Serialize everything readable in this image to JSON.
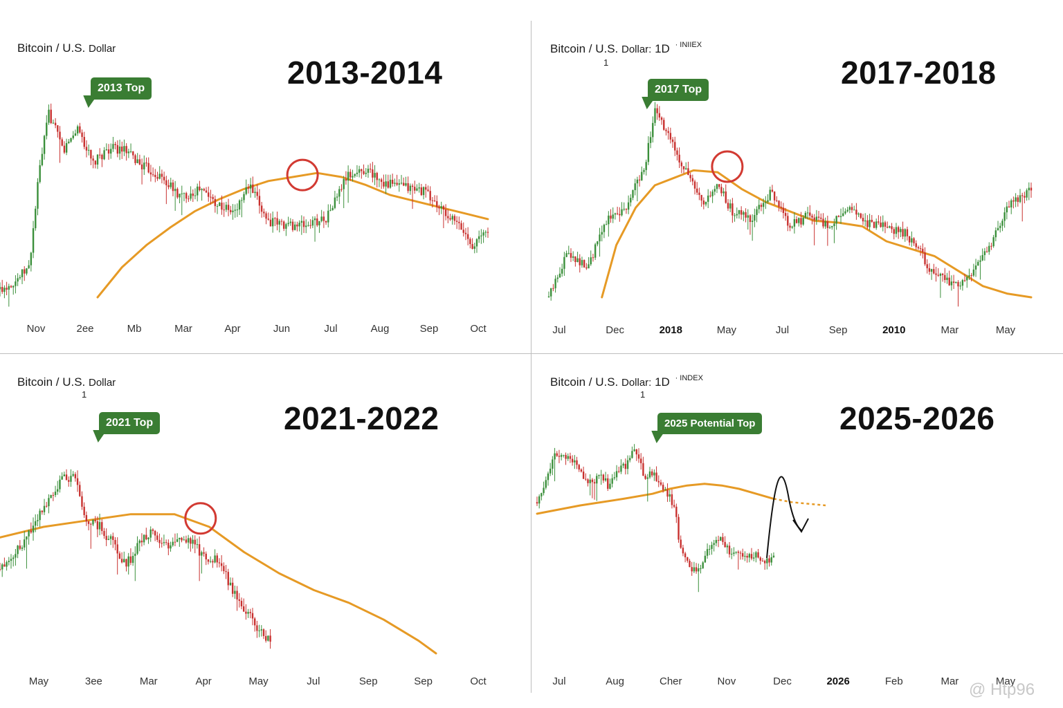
{
  "watermark": "@ Htp96",
  "chart_data": [
    {
      "type": "line",
      "subtitle": {
        "main": "Bitcoin / U.S.",
        "small": "Dollar",
        "suffix": "",
        "sup": "",
        "digit": ""
      },
      "title": "2013-2014",
      "annotation": "2013 Top",
      "ticks": [
        "Nov",
        "2ee",
        "Mb",
        "Mar",
        "Apr",
        "Jun",
        "Jul",
        "Aug",
        "Sep",
        "Oct"
      ],
      "bold_ticks": [],
      "ylim": [
        0,
        100
      ],
      "series": [
        {
          "name": "Price",
          "x": [
            0,
            3,
            6,
            8,
            10,
            13,
            16,
            19,
            22,
            25,
            29,
            33,
            37,
            41,
            45,
            48,
            51,
            55,
            59,
            63,
            67,
            71,
            75,
            79,
            83,
            87,
            91,
            94,
            97,
            100
          ],
          "values": [
            4,
            8,
            15,
            62,
            92,
            73,
            85,
            66,
            74,
            74,
            66,
            60,
            50,
            54,
            46,
            42,
            56,
            38,
            36,
            36,
            40,
            60,
            64,
            57,
            55,
            53,
            42,
            36,
            26,
            34
          ]
        },
        {
          "name": "Moving average",
          "x": [
            20,
            25,
            30,
            35,
            40,
            45,
            50,
            55,
            60,
            65,
            70,
            75,
            80,
            85,
            90,
            95,
            100
          ],
          "values": [
            0,
            15,
            26,
            35,
            43,
            49,
            54,
            58,
            60,
            62,
            60,
            56,
            51,
            48,
            45,
            42,
            39
          ]
        }
      ],
      "circle": {
        "x": 62,
        "y": 61
      },
      "curve_arrow": null,
      "projection": null
    },
    {
      "type": "line",
      "subtitle": {
        "main": "Bitcoin / U.S.",
        "small": "Dollar:",
        "suffix": "1D",
        "sup": "· INIIEX",
        "digit": "1"
      },
      "title": "2017-2018",
      "annotation": "2017 Top",
      "ticks": [
        "Jul",
        "Dec",
        "2018",
        "May",
        "Jul",
        "Sep",
        "2010",
        "Mar",
        "May"
      ],
      "bold_ticks": [
        "2018",
        "2010"
      ],
      "ylim": [
        0,
        100
      ],
      "series": [
        {
          "name": "Price",
          "x": [
            0,
            4,
            8,
            12,
            16,
            20,
            22,
            25,
            28,
            32,
            35,
            38,
            42,
            46,
            50,
            54,
            58,
            62,
            66,
            70,
            74,
            77,
            80,
            82,
            84,
            86,
            88,
            90,
            92,
            95,
            97,
            100
          ],
          "values": [
            0,
            25,
            15,
            42,
            48,
            72,
            100,
            85,
            70,
            48,
            60,
            46,
            42,
            56,
            38,
            44,
            38,
            48,
            40,
            38,
            34,
            24,
            10,
            12,
            6,
            8,
            15,
            22,
            30,
            48,
            52,
            58
          ]
        },
        {
          "name": "Moving average",
          "x": [
            11,
            14,
            18,
            22,
            26,
            30,
            35,
            40,
            45,
            50,
            55,
            60,
            65,
            70,
            75,
            80,
            85,
            90,
            95,
            100
          ],
          "values": [
            0,
            28,
            48,
            60,
            64,
            68,
            67,
            58,
            51,
            46,
            41,
            40,
            38,
            30,
            26,
            22,
            14,
            6,
            2,
            0
          ]
        }
      ],
      "circle": {
        "x": 37,
        "y": 70
      },
      "curve_arrow": null,
      "projection": null
    },
    {
      "type": "line",
      "subtitle": {
        "main": "Bitcoin / U.S.",
        "small": "Dollar",
        "suffix": "",
        "sup": "",
        "digit": "1"
      },
      "title": "2021-2022",
      "annotation": "2021 Top",
      "ticks": [
        "May",
        "3ee",
        "Mar",
        "Apr",
        "May",
        "Jul",
        "Sep",
        "Sep",
        "Oct"
      ],
      "bold_ticks": [],
      "ylim": [
        0,
        100
      ],
      "series": [
        {
          "name": "Price",
          "x": [
            0,
            5,
            10,
            14,
            17,
            20,
            23,
            26,
            29,
            32,
            35,
            38,
            41,
            44,
            47,
            50,
            53,
            55,
            58,
            60,
            62
          ],
          "values": [
            40,
            52,
            70,
            82,
            84,
            62,
            60,
            52,
            42,
            52,
            58,
            50,
            56,
            52,
            46,
            44,
            32,
            24,
            16,
            10,
            5
          ]
        },
        {
          "name": "Moving average",
          "x": [
            0,
            10,
            20,
            30,
            40,
            48,
            56,
            64,
            72,
            80,
            88,
            96,
            100
          ],
          "values": [
            55,
            60,
            63,
            66,
            66,
            60,
            48,
            38,
            30,
            24,
            16,
            6,
            0
          ]
        }
      ],
      "circle": {
        "x": 46,
        "y": 64
      },
      "curve_arrow": null,
      "projection": null
    },
    {
      "type": "line",
      "subtitle": {
        "main": "Bitcoin / U.S.",
        "small": "Dollar:",
        "suffix": "1D",
        "sup": "· INDEX",
        "digit": "1"
      },
      "title": "2025-2026",
      "annotation": "2025 Potential Top",
      "ticks": [
        "Jul",
        "Aug",
        "Cher",
        "Nov",
        "Dec",
        "2026",
        "Feb",
        "Mar",
        "May"
      ],
      "bold_ticks": [
        "2026"
      ],
      "ylim": [
        0,
        100
      ],
      "series": [
        {
          "name": "Price",
          "x": [
            0,
            3,
            5,
            7,
            10,
            13,
            16,
            19,
            22,
            25,
            28,
            31,
            34,
            37,
            40,
            43,
            46,
            48,
            50,
            53,
            55,
            58,
            61,
            64,
            67,
            70,
            73,
            76,
            79,
            82
          ],
          "values": [
            62,
            76,
            86,
            92,
            88,
            86,
            78,
            72,
            80,
            70,
            82,
            84,
            96,
            78,
            80,
            72,
            66,
            54,
            30,
            24,
            20,
            28,
            38,
            40,
            30,
            34,
            28,
            30,
            26,
            28
          ]
        },
        {
          "name": "Moving average",
          "x": [
            0,
            15,
            30,
            40,
            46,
            52,
            58,
            64,
            70,
            76,
            82
          ],
          "values": [
            55,
            60,
            64,
            67,
            70,
            72,
            73,
            72,
            70,
            67,
            64
          ]
        }
      ],
      "circle": null,
      "curve_arrow": {
        "label": "curved down arrow"
      },
      "projection": {
        "style": "dotted",
        "x": [
          82,
          88,
          94,
          100
        ],
        "values": [
          64,
          62,
          61,
          60
        ]
      }
    }
  ]
}
